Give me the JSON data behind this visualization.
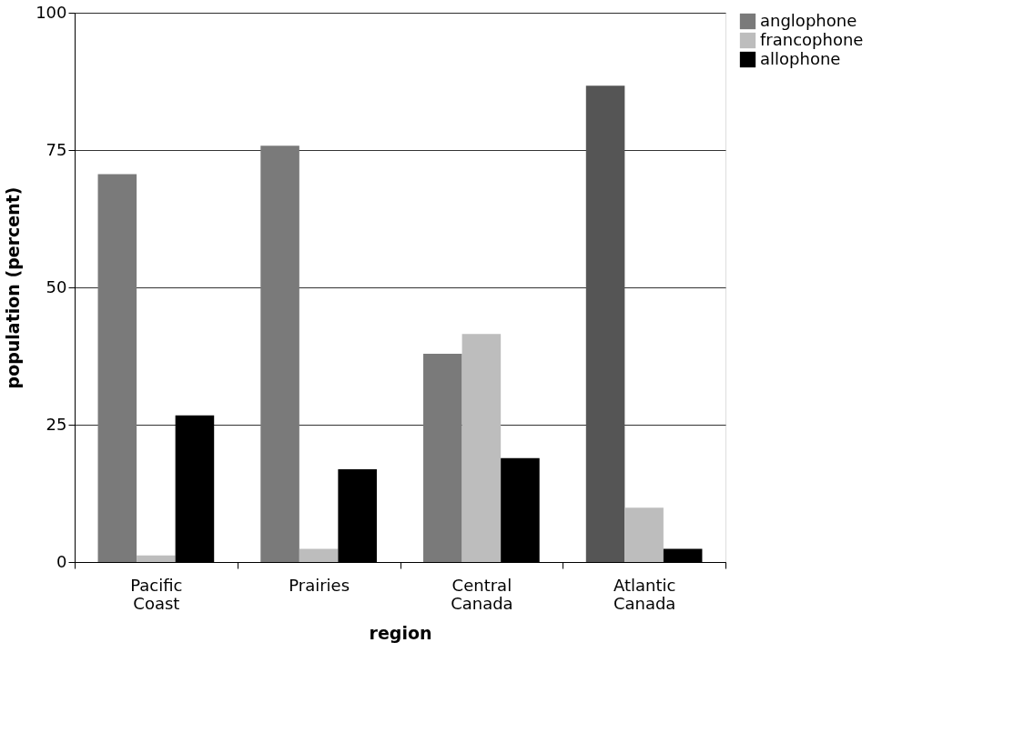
{
  "chart_data": {
    "type": "bar",
    "xlabel": "region",
    "ylabel": "population (percent)",
    "categories": [
      "Pacific Coast",
      "Prairies",
      "Central Canada",
      "Atlantic Canada"
    ],
    "series": [
      {
        "name": "anglophone",
        "color": "#7a7a7a",
        "colors": [
          "#7a7a7a",
          "#7a7a7a",
          "#7a7a7a",
          "#555555"
        ],
        "values": [
          70.6,
          75.8,
          37.9,
          86.7
        ]
      },
      {
        "name": "francophone",
        "color": "#bdbdbd",
        "values": [
          1.2,
          2.4,
          41.5,
          9.9
        ]
      },
      {
        "name": "allophone",
        "color": "#000000",
        "values": [
          26.7,
          16.9,
          18.9,
          2.4
        ]
      }
    ],
    "ylim": [
      0,
      100
    ],
    "yticks": [
      0,
      25,
      50,
      75,
      100
    ],
    "grid": "y",
    "legend": "right"
  }
}
